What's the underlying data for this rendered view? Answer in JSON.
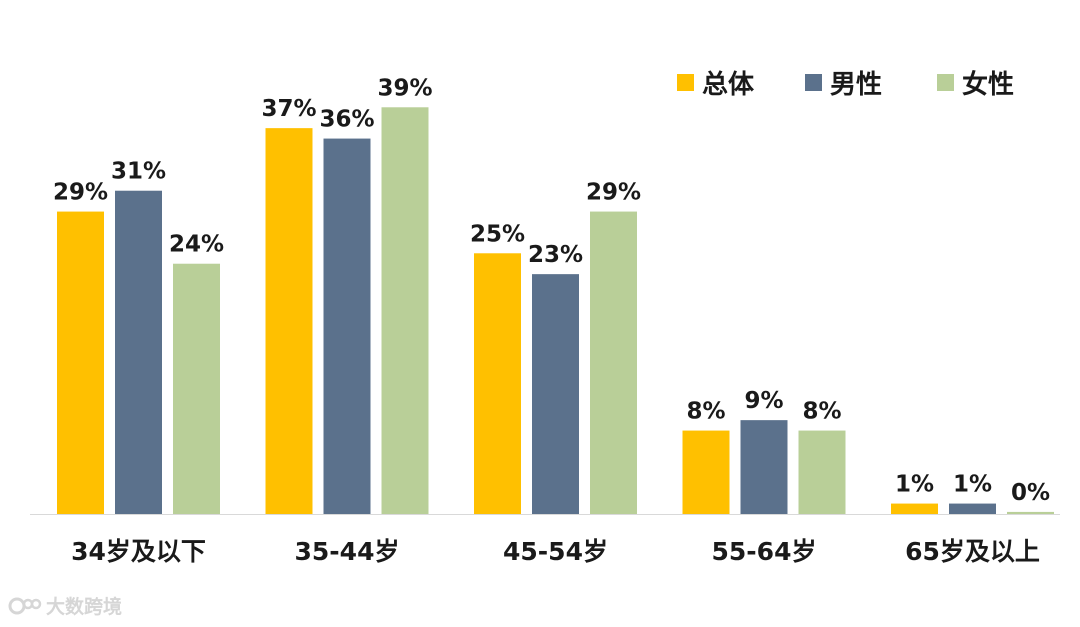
{
  "chart_data": {
    "type": "bar",
    "categories": [
      "34岁及以下",
      "35-44岁",
      "45-54岁",
      "55-64岁",
      "65岁及以上"
    ],
    "series": [
      {
        "name": "总体",
        "color": "#FFC000",
        "values": [
          29,
          37,
          25,
          8,
          1
        ],
        "labels": [
          "29%",
          "37%",
          "25%",
          "8%",
          "1%"
        ]
      },
      {
        "name": "男性",
        "color": "#5B718C",
        "values": [
          31,
          36,
          23,
          9,
          1
        ],
        "labels": [
          "31%",
          "36%",
          "23%",
          "9%",
          "1%"
        ]
      },
      {
        "name": "女性",
        "color": "#B9CF98",
        "values": [
          24,
          39,
          29,
          8,
          0.2
        ],
        "labels": [
          "24%",
          "39%",
          "29%",
          "8%",
          "0%"
        ]
      }
    ],
    "ylim": [
      0,
      42
    ],
    "unit": "%",
    "grid": false,
    "legend_position": "top-right"
  },
  "watermark": {
    "text": "大数跨境",
    "icon": "logo-icon"
  }
}
